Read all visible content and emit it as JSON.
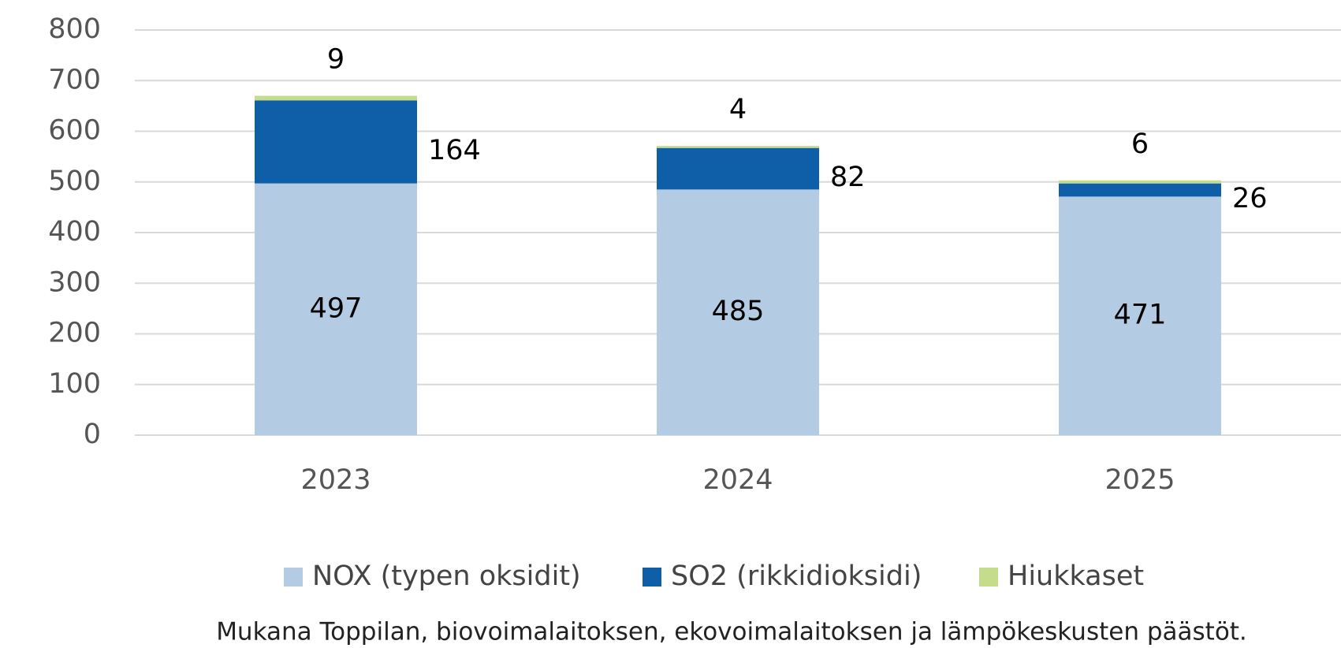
{
  "chart_data": {
    "type": "bar",
    "stacked": true,
    "categories": [
      "2023",
      "2024",
      "2025"
    ],
    "series": [
      {
        "name": "NOX (typen oksidit)",
        "color": "#b4cbe4",
        "values": [
          497,
          485,
          471
        ]
      },
      {
        "name": "SO2 (rikkidioksidi)",
        "color": "#0f5fa8",
        "values": [
          164,
          82,
          26
        ]
      },
      {
        "name": "Hiukkaset",
        "color": "#c4dc8c",
        "values": [
          9,
          4,
          6
        ]
      }
    ],
    "ylim": [
      0,
      800
    ],
    "yticks": [
      0,
      100,
      200,
      300,
      400,
      500,
      600,
      700,
      800
    ],
    "grid": true,
    "legend": "bottom",
    "annotation": "Mukana Toppilan, biovoimalaitoksen, ekovoimalaitoksen ja lämpökeskusten päästöt."
  }
}
